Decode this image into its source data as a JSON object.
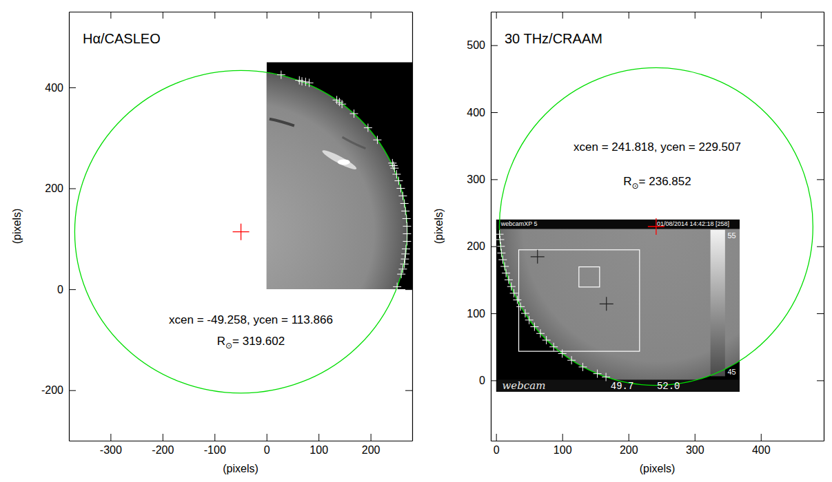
{
  "chart_data": [
    {
      "type": "scatter",
      "title": "Hα/CASLEO",
      "x_label": "(pixels)",
      "y_label": "(pixels)",
      "xlim": [
        -380,
        280
      ],
      "ylim": [
        -300,
        550
      ],
      "xticks": [
        -300,
        -200,
        -100,
        0,
        100,
        200
      ],
      "yticks": [
        -200,
        0,
        200,
        400
      ],
      "x": [
        28,
        63,
        68,
        75,
        82,
        135,
        140,
        145,
        168,
        195,
        213,
        242,
        244,
        246,
        250,
        254,
        258,
        262,
        265,
        267,
        269,
        270,
        270,
        270,
        268,
        267,
        266,
        265,
        262,
        259,
        251
      ],
      "y": [
        425,
        414,
        412,
        411,
        409,
        375,
        371,
        367,
        348,
        320,
        296,
        250,
        245,
        240,
        228,
        215,
        200,
        185,
        170,
        155,
        140,
        125,
        110,
        95,
        80,
        70,
        60,
        50,
        40,
        30,
        5
      ],
      "color": "#ffffff",
      "marker": "plus",
      "circle": {
        "xcen": -49.258,
        "ycen": 113.866,
        "r": 319.602
      },
      "annotations": [
        "xcen = -49.258,  ycen = 113.866"
      ],
      "radius_label": {
        "symbol": "R",
        "subscript": "⊙",
        "text": "= 319.602"
      },
      "image": {
        "extent": [
          0,
          280,
          0,
          450
        ]
      }
    },
    {
      "type": "scatter",
      "title": "30 THz/CRAAM",
      "x_label": "(pixels)",
      "y_label": "(pixels)",
      "xlim": [
        -8,
        495
      ],
      "ylim": [
        -90,
        550
      ],
      "xticks": [
        0,
        100,
        200,
        300,
        400
      ],
      "yticks": [
        0,
        100,
        200,
        300,
        400,
        500
      ],
      "x": [
        5,
        6,
        7,
        8,
        10,
        13,
        15,
        19,
        23,
        27,
        32,
        37,
        44,
        50,
        58,
        67,
        76,
        87,
        100,
        114,
        131,
        153,
        166
      ],
      "y": [
        218,
        210,
        200,
        190,
        180,
        170,
        160,
        150,
        140,
        130,
        120,
        110,
        100,
        90,
        80,
        70,
        60,
        50,
        40,
        30,
        20,
        10,
        5
      ],
      "color": "#ffffff",
      "marker": "plus",
      "circle": {
        "xcen": 241.818,
        "ycen": 229.507,
        "r": 236.852
      },
      "annotations": [
        "xcen = 241.818,  ycen = 229.507"
      ],
      "radius_label": {
        "symbol": "R",
        "subscript": "⊙",
        "text": "= 236.852"
      },
      "image": {
        "extent": [
          0,
          368,
          -17,
          240
        ],
        "texts": [
          "webcamXP 5",
          "01/08/2014 14:42:18  [258]",
          "webcam",
          "49.7",
          "52.0"
        ],
        "colorbar": {
          "range": [
            45,
            55
          ],
          "ticks": [
            45,
            55
          ]
        }
      }
    }
  ]
}
